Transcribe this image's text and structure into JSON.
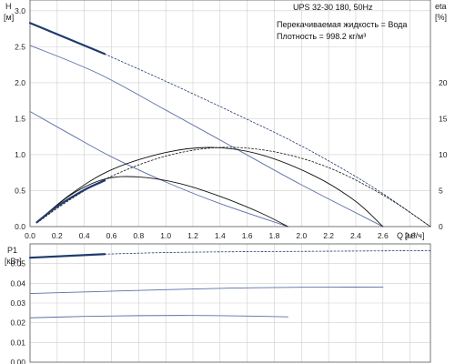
{
  "chart_data": [
    {
      "type": "line",
      "panel": "head_eta",
      "title": "UPS 32-30 180, 50Hz",
      "ylabel": "H",
      "yunit": "[м]",
      "y2label": "eta",
      "y2unit": "[%]",
      "xlabel": "Q",
      "xunit": "[м³/ч]",
      "info": [
        "Перекачиваемая жидкость = Вода",
        "Плотность = 998.2 кг/м³"
      ],
      "xlim": [
        0,
        2.95
      ],
      "ylim": [
        0,
        3.15
      ],
      "y2lim": [
        0,
        31.5
      ],
      "xticks": [
        "0.0",
        "0.2",
        "0.4",
        "0.6",
        "0.8",
        "1.0",
        "1.2",
        "1.4",
        "1.6",
        "1.8",
        "2.0",
        "2.2",
        "2.4",
        "2.6",
        "2.8"
      ],
      "yticks": [
        "0.0",
        "0.5",
        "1.0",
        "1.5",
        "2.0",
        "2.5",
        "3.0"
      ],
      "y2ticks": [
        "0",
        "5",
        "10",
        "15",
        "20"
      ],
      "grid": true,
      "colors": {
        "thin": "#5a6fa8",
        "bold": "#1f3a6e",
        "eta": "#111111",
        "grid": "#cfcfcf"
      },
      "series": [
        {
          "role": "head-speed3-operating",
          "axis": "y",
          "style": "bold",
          "x": [
            0.0,
            0.55
          ],
          "y": [
            2.83,
            2.4
          ]
        },
        {
          "role": "head-speed3-extension",
          "axis": "y",
          "style": "dashed",
          "x": [
            0.55,
            1.0,
            1.5,
            2.0,
            2.5,
            2.95
          ],
          "y": [
            2.4,
            2.02,
            1.58,
            1.12,
            0.58,
            0.0
          ]
        },
        {
          "role": "head-speed2",
          "axis": "y",
          "style": "thin",
          "x": [
            0.0,
            0.5,
            1.0,
            1.5,
            2.0,
            2.6
          ],
          "y": [
            2.52,
            2.13,
            1.62,
            1.1,
            0.58,
            0.0
          ]
        },
        {
          "role": "head-speed1",
          "axis": "y",
          "style": "thin",
          "x": [
            0.0,
            0.3,
            0.6,
            1.0,
            1.4,
            1.9
          ],
          "y": [
            1.6,
            1.28,
            0.97,
            0.62,
            0.32,
            0.0
          ]
        },
        {
          "role": "eta-speed3",
          "axis": "y2",
          "style": "dashed",
          "x": [
            0.05,
            0.3,
            0.6,
            1.0,
            1.4,
            1.8,
            2.2,
            2.6,
            2.95
          ],
          "y": [
            0.5,
            3.8,
            7.0,
            9.8,
            11.0,
            10.4,
            8.2,
            4.4,
            0.0
          ]
        },
        {
          "role": "eta-speed2",
          "axis": "y2",
          "style": "solid",
          "x": [
            0.05,
            0.3,
            0.6,
            1.0,
            1.35,
            1.7,
            2.1,
            2.4,
            2.6
          ],
          "y": [
            0.6,
            4.5,
            7.9,
            10.3,
            11.0,
            10.0,
            7.0,
            3.5,
            0.0
          ]
        },
        {
          "role": "eta-speed1",
          "axis": "y2",
          "style": "solid",
          "x": [
            0.05,
            0.3,
            0.55,
            0.8,
            1.1,
            1.4,
            1.7,
            1.9
          ],
          "y": [
            0.6,
            4.4,
            6.6,
            6.9,
            6.0,
            4.2,
            1.9,
            0.0
          ]
        },
        {
          "role": "eta-speed1-operating",
          "axis": "y2",
          "style": "bold",
          "x": [
            0.05,
            0.2,
            0.4,
            0.55
          ],
          "y": [
            0.6,
            2.8,
            5.1,
            6.4
          ]
        }
      ]
    },
    {
      "type": "line",
      "panel": "power",
      "ylabel": "P1",
      "yunit": "[кВт]",
      "xlim": [
        0,
        2.95
      ],
      "ylim": [
        0,
        0.06
      ],
      "yticks": [
        "0.00",
        "0.01",
        "0.02",
        "0.03",
        "0.04",
        "0.05"
      ],
      "grid": true,
      "series": [
        {
          "role": "p1-speed3-operating",
          "style": "bold",
          "x": [
            0.0,
            0.55
          ],
          "y": [
            0.053,
            0.0548
          ]
        },
        {
          "role": "p1-speed3-extension",
          "style": "dashed",
          "x": [
            0.55,
            1.0,
            1.5,
            2.0,
            2.5,
            2.95
          ],
          "y": [
            0.0548,
            0.0556,
            0.056,
            0.0562,
            0.0564,
            0.0566
          ]
        },
        {
          "role": "p1-speed2",
          "style": "thin",
          "x": [
            0.0,
            0.5,
            1.0,
            1.5,
            2.0,
            2.6
          ],
          "y": [
            0.0348,
            0.0358,
            0.0368,
            0.0376,
            0.038,
            0.0381
          ]
        },
        {
          "role": "p1-speed1",
          "style": "thin",
          "x": [
            0.0,
            0.4,
            0.8,
            1.2,
            1.6,
            1.9
          ],
          "y": [
            0.0225,
            0.0232,
            0.0236,
            0.0237,
            0.0234,
            0.023
          ]
        }
      ]
    }
  ]
}
